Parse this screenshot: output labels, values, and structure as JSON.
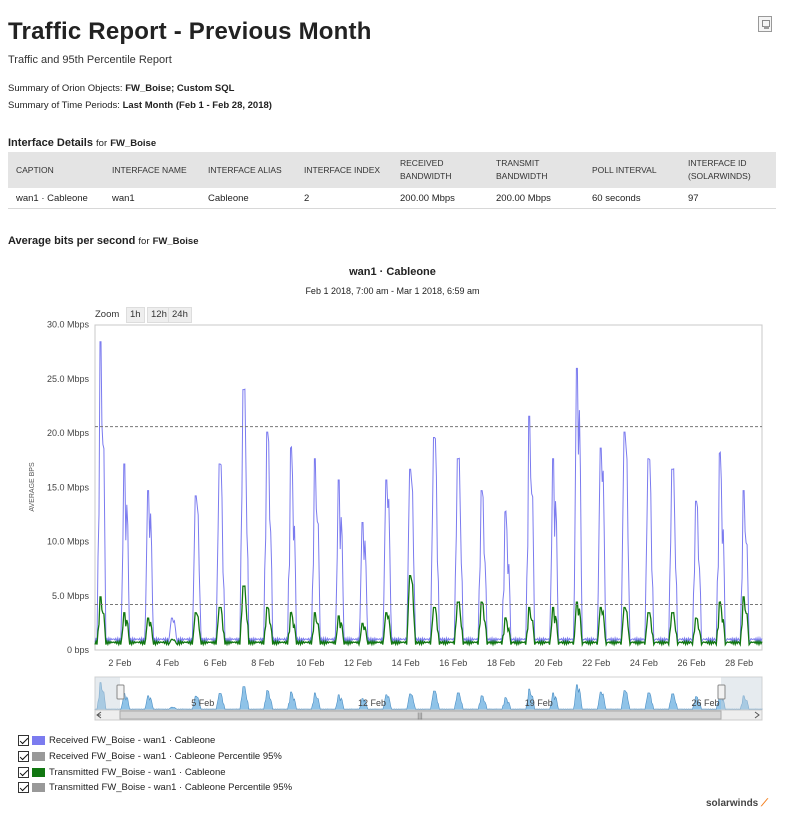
{
  "header": {
    "title": "Traffic Report - Previous Month",
    "subtitle": "Traffic and 95th Percentile Report",
    "summary_objects_label": "Summary of Orion Objects:",
    "summary_objects_value": "FW_Boise; Custom SQL",
    "summary_periods_label": "Summary of Time Periods:",
    "summary_periods_value": "Last Month (Feb 1 - Feb 28, 2018)"
  },
  "interface_details": {
    "heading": "Interface Details",
    "for": "for",
    "object": "FW_Boise",
    "columns": [
      "CAPTION",
      "INTERFACE NAME",
      "INTERFACE ALIAS",
      "INTERFACE INDEX",
      "RECEIVED BANDWIDTH",
      "TRANSMIT BANDWIDTH",
      "POLL INTERVAL",
      "INTERFACE ID (SOLARWINDS)"
    ],
    "row": [
      "wan1 · Cableone",
      "wan1",
      "Cableone",
      "2",
      "200.00 Mbps",
      "200.00 Mbps",
      "60 seconds",
      "97"
    ]
  },
  "avg_section": {
    "heading": "Average bits per second",
    "for": "for",
    "object": "FW_Boise"
  },
  "chart": {
    "title": "wan1 · Cableone",
    "subtitle": "Feb 1 2018, 7:00 am - Mar 1 2018, 6:59 am",
    "zoom_label": "Zoom",
    "zoom_buttons": [
      "1h",
      "12h",
      "24h"
    ],
    "y_axis_label": "AVERAGE BPS",
    "navigator_labels": [
      "5 Feb",
      "12 Feb",
      "19 Feb",
      "26 Feb"
    ],
    "legend": [
      {
        "label": "Received FW_Boise - wan1 · Cableone",
        "color": "#7b7bef"
      },
      {
        "label": "Received FW_Boise - wan1 · Cableone Percentile 95%",
        "color": "#999999"
      },
      {
        "label": "Transmitted FW_Boise - wan1 · Cableone",
        "color": "#117711"
      },
      {
        "label": "Transmitted FW_Boise - wan1 · Cableone Percentile 95%",
        "color": "#999999"
      }
    ]
  },
  "chart_data": {
    "type": "line",
    "title": "wan1 · Cableone",
    "subtitle": "Feb 1 2018, 7:00 am - Mar 1 2018, 6:59 am",
    "xlabel": "",
    "ylabel": "AVERAGE BPS",
    "x_range": [
      1,
      29
    ],
    "ylim": [
      0,
      32
    ],
    "y_ticks": [
      0,
      5,
      10,
      15,
      20,
      25,
      30
    ],
    "y_tick_labels": [
      "0 bps",
      "5.0 Mbps",
      "10.0 Mbps",
      "15.0 Mbps",
      "20.0 Mbps",
      "25.0 Mbps",
      "30.0 Mbps"
    ],
    "x_ticks": [
      2,
      4,
      6,
      8,
      10,
      12,
      14,
      16,
      18,
      20,
      22,
      24,
      26,
      28
    ],
    "x_tick_labels": [
      "2 Feb",
      "4 Feb",
      "6 Feb",
      "8 Feb",
      "10 Feb",
      "12 Feb",
      "14 Feb",
      "16 Feb",
      "18 Feb",
      "20 Feb",
      "22 Feb",
      "24 Feb",
      "26 Feb",
      "28 Feb"
    ],
    "grid": false,
    "legend_position": "bottom-left",
    "daily_peaks_received_mbps": [
      29,
      17.5,
      15,
      3,
      14.5,
      17.5,
      24.5,
      20.5,
      19,
      18,
      16,
      12,
      16,
      17,
      20,
      18,
      15,
      13,
      22,
      18,
      26.5,
      19,
      20.5,
      18,
      17,
      14,
      18.5,
      15
    ],
    "daily_peaks_transmitted_mbps": [
      5,
      3.5,
      3,
      1,
      3.5,
      4,
      6,
      4,
      3.5,
      3.5,
      3.2,
      2.5,
      3.5,
      7,
      4,
      4.5,
      4.5,
      3,
      4,
      4,
      4.5,
      4,
      4,
      3.5,
      3.5,
      3,
      4.5,
      5
    ],
    "percentile_95_received_mbps": 20.6,
    "percentile_95_transmitted_mbps": 4.2,
    "series": [
      {
        "name": "Received FW_Boise - wan1 · Cableone",
        "color": "#7b7bef"
      },
      {
        "name": "Received FW_Boise - wan1 · Cableone Percentile 95%",
        "color": "#999999"
      },
      {
        "name": "Transmitted FW_Boise - wan1 · Cableone",
        "color": "#117711"
      },
      {
        "name": "Transmitted FW_Boise - wan1 · Cableone Percentile 95%",
        "color": "#999999"
      }
    ]
  },
  "footer": {
    "brand": "solarwinds"
  }
}
